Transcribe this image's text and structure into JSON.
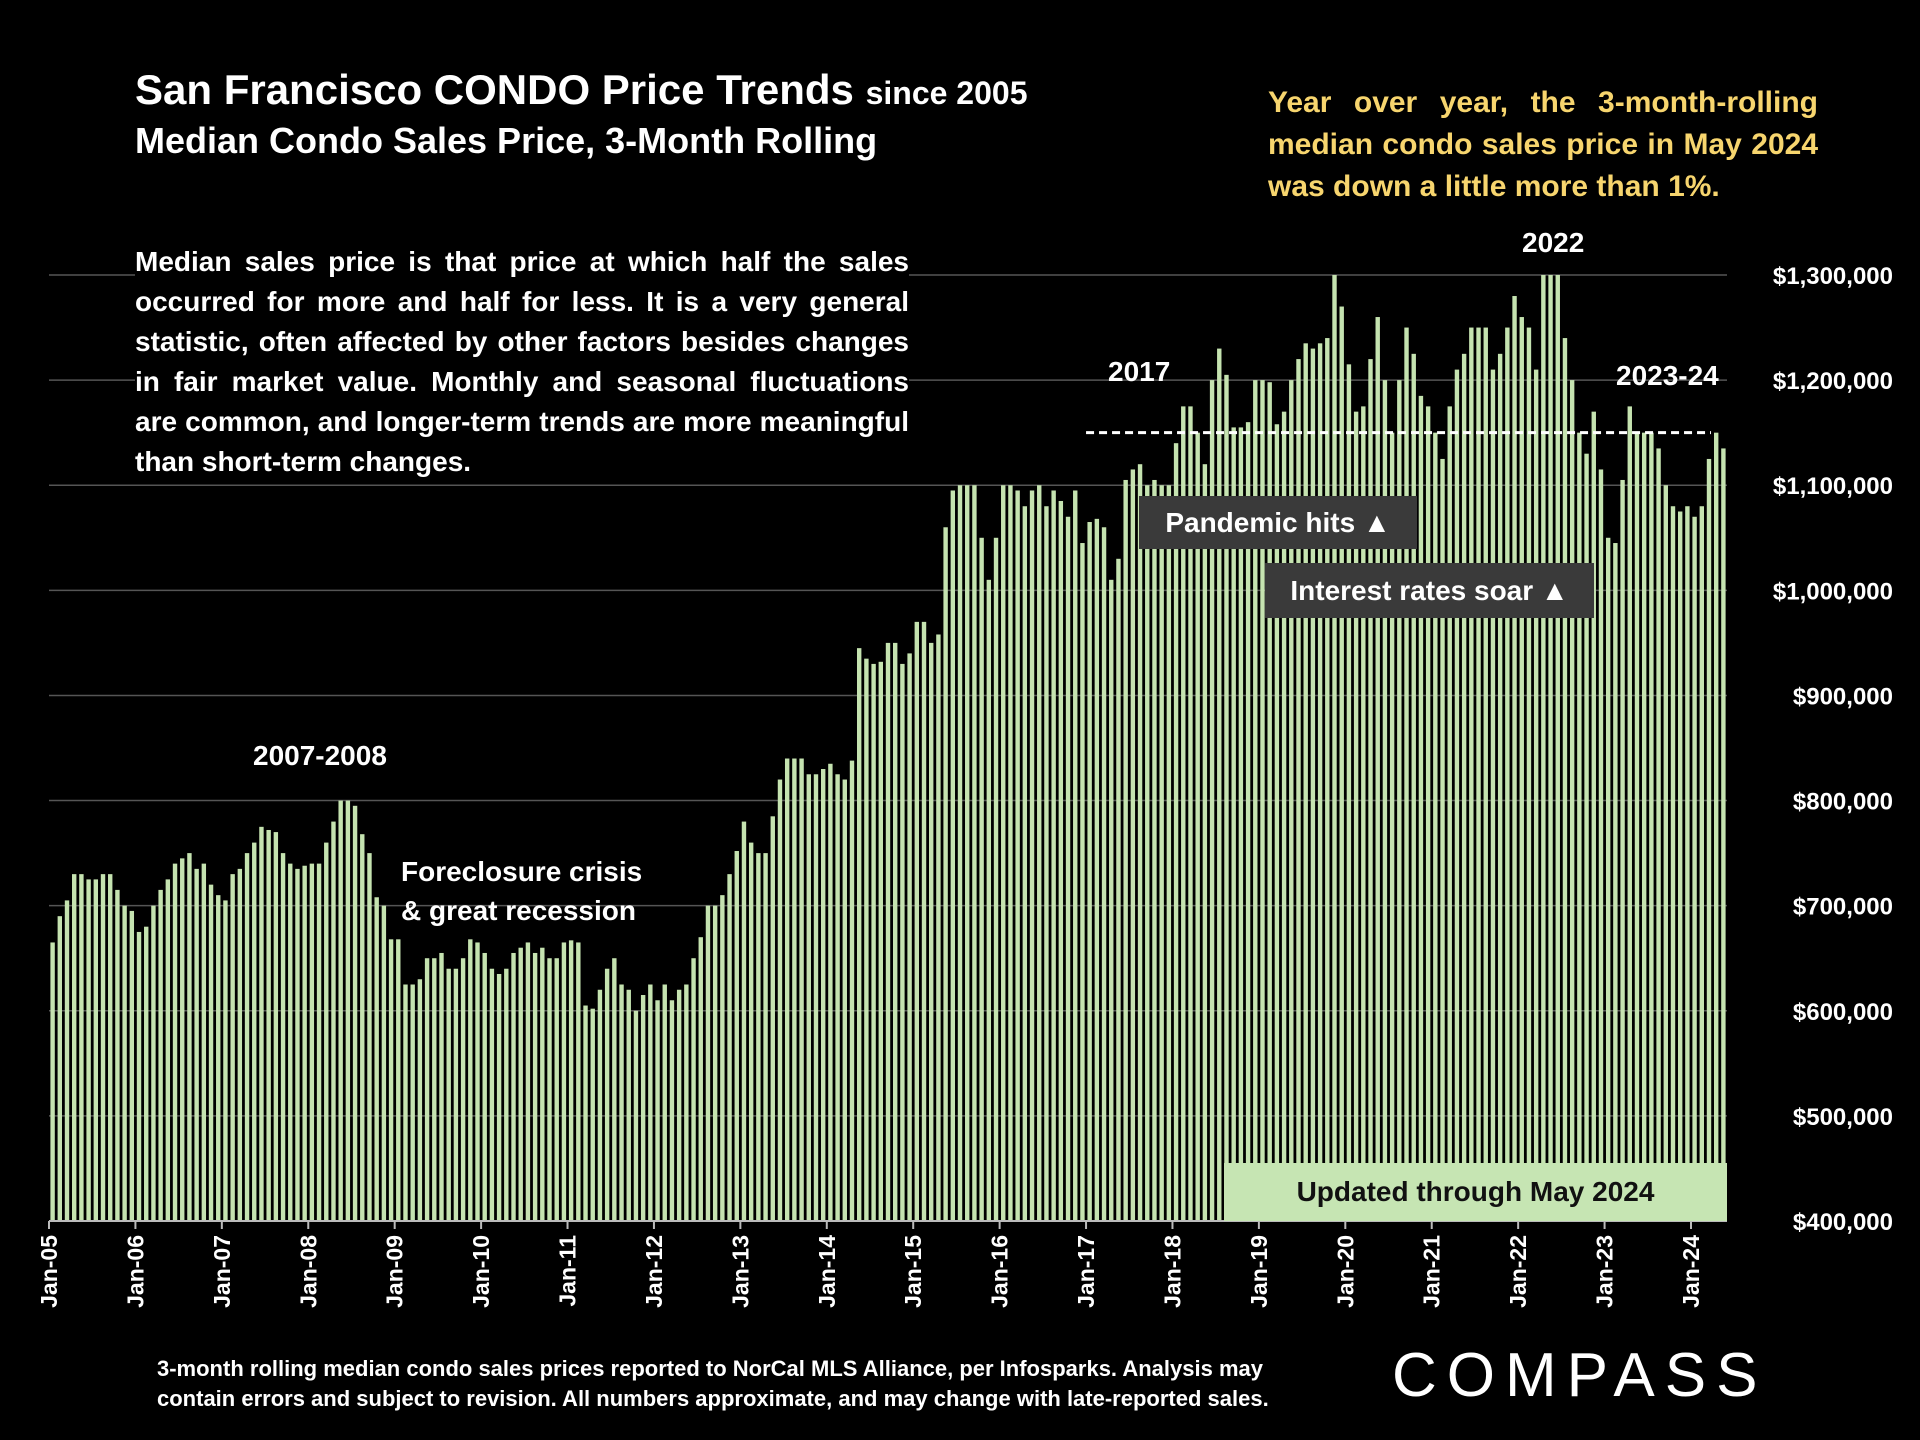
{
  "chart_data": {
    "type": "bar",
    "title": "San Francisco CONDO Price Trends",
    "title_suffix": "since 2005",
    "subtitle": "Median Condo Sales Price, 3-Month Rolling",
    "start": "Jan-05",
    "end": "May-24",
    "ylim": [
      400000,
      1300000
    ],
    "y_ticks": [
      "$400,000",
      "$500,000",
      "$600,000",
      "$700,000",
      "$800,000",
      "$900,000",
      "$1,000,000",
      "$1,100,000",
      "$1,200,000",
      "$1,300,000"
    ],
    "y_tick_values": [
      400000,
      500000,
      600000,
      700000,
      800000,
      900000,
      1000000,
      1100000,
      1200000,
      1300000
    ],
    "x_ticks": [
      "Jan-05",
      "Jan-06",
      "Jan-07",
      "Jan-08",
      "Jan-09",
      "Jan-10",
      "Jan-11",
      "Jan-12",
      "Jan-13",
      "Jan-14",
      "Jan-15",
      "Jan-16",
      "Jan-17",
      "Jan-18",
      "Jan-19",
      "Jan-20",
      "Jan-21",
      "Jan-22",
      "Jan-23",
      "Jan-24"
    ],
    "grid": true,
    "bar_color": "#c5e3b0",
    "reference_line": {
      "value": 1150000,
      "from_month_index": 144,
      "to_month_index": 232,
      "style": "dashed"
    },
    "values_thousands": [
      665,
      690,
      705,
      730,
      730,
      725,
      725,
      730,
      730,
      715,
      700,
      695,
      675,
      680,
      700,
      715,
      725,
      740,
      745,
      750,
      735,
      740,
      720,
      710,
      705,
      730,
      735,
      750,
      760,
      775,
      772,
      770,
      750,
      740,
      735,
      738,
      740,
      740,
      760,
      780,
      800,
      800,
      795,
      768,
      750,
      708,
      700,
      668,
      668,
      625,
      625,
      630,
      650,
      650,
      655,
      640,
      640,
      650,
      668,
      665,
      655,
      640,
      635,
      640,
      655,
      660,
      665,
      655,
      660,
      650,
      650,
      665,
      667,
      665,
      605,
      602,
      620,
      640,
      650,
      625,
      620,
      600,
      615,
      625,
      610,
      625,
      610,
      620,
      625,
      650,
      670,
      700,
      700,
      710,
      730,
      752,
      780,
      760,
      750,
      750,
      785,
      820,
      840,
      840,
      840,
      825,
      825,
      830,
      835,
      825,
      820,
      838,
      945,
      935,
      930,
      932,
      950,
      950,
      930,
      940,
      970,
      970,
      950,
      958,
      1060,
      1095,
      1100,
      1100,
      1100,
      1050,
      1010,
      1050,
      1100,
      1100,
      1095,
      1080,
      1095,
      1100,
      1080,
      1095,
      1085,
      1070,
      1095,
      1045,
      1065,
      1068,
      1060,
      1010,
      1030,
      1105,
      1115,
      1120,
      1100,
      1105,
      1100,
      1100,
      1140,
      1175,
      1175,
      1150,
      1120,
      1200,
      1230,
      1205,
      1155,
      1155,
      1160,
      1200,
      1200,
      1198,
      1158,
      1170,
      1200,
      1220,
      1235,
      1230,
      1235,
      1240,
      1300,
      1270,
      1215,
      1170,
      1175,
      1220,
      1260,
      1200,
      1150,
      1200,
      1250,
      1225,
      1185,
      1175,
      1150,
      1125,
      1175,
      1210,
      1225,
      1250,
      1250,
      1250,
      1210,
      1225,
      1250,
      1280,
      1260,
      1250,
      1210,
      1300,
      1300,
      1300,
      1240,
      1200,
      1150,
      1130,
      1170,
      1115,
      1050,
      1045,
      1105,
      1175,
      1150,
      1150,
      1150,
      1135,
      1100,
      1080,
      1075,
      1080,
      1070,
      1080,
      1125,
      1150,
      1135
    ],
    "annotations": {
      "y2007": "2007-2008",
      "foreclosure1": "Foreclosure crisis",
      "foreclosure2": "& great recession",
      "y2017": "2017",
      "y2022": "2022",
      "y2023": "2023-24",
      "pandemic": "Pandemic hits ▲",
      "rates": "Interest rates soar ▲",
      "updated": "Updated through May 2024"
    }
  },
  "callout": "Year over year, the 3-month-rolling median condo sales price in May 2024 was down a little more than 1%.",
  "note": "Median sales price is that price at which half the sales occurred for more and half for less. It is a very general statistic, often affected by other factors besides changes in fair market value. Monthly and seasonal fluctuations are common, and longer-term trends are more meaningful than short-term changes.",
  "footer": {
    "line1": "3-month rolling median condo sales prices reported to NorCal MLS Alliance, per Infosparks. Analysis may",
    "line2": "contain errors and subject to revision. All numbers approximate, and may change with late-reported sales."
  },
  "logo": "COMPASS"
}
